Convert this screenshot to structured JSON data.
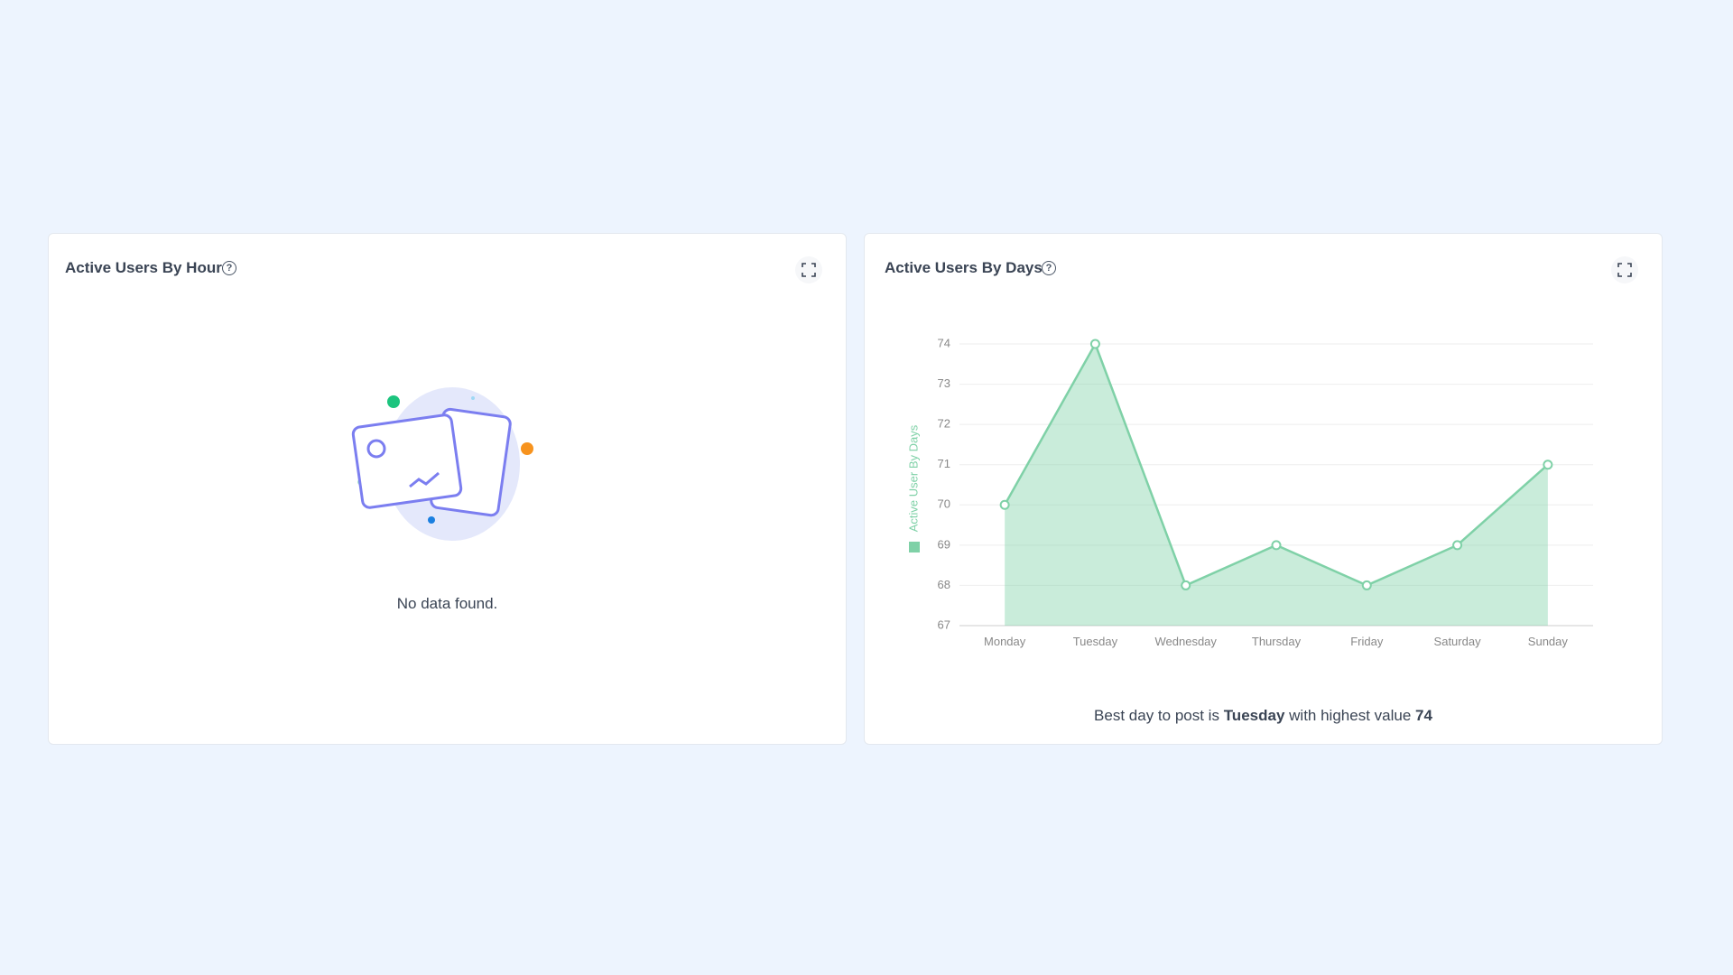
{
  "cards": [
    {
      "title": "Active Users By Hour",
      "empty_message": "No data found."
    },
    {
      "title": "Active Users By Days"
    }
  ],
  "chart_data": {
    "type": "line",
    "categories": [
      "Monday",
      "Tuesday",
      "Wednesday",
      "Thursday",
      "Friday",
      "Saturday",
      "Sunday"
    ],
    "series": [
      {
        "name": "Active User By Days",
        "color": "#7fd1a7",
        "values": [
          70,
          74,
          68,
          69,
          68,
          69,
          71
        ]
      }
    ],
    "ylim": [
      67,
      74
    ],
    "yticks": [
      67,
      68,
      69,
      70,
      71,
      72,
      73,
      74
    ],
    "grid": true,
    "legend": "left",
    "fill": true
  },
  "summary": {
    "prefix": "Best day to post is",
    "day": "Tuesday",
    "middle": "with highest value",
    "value": 74
  }
}
